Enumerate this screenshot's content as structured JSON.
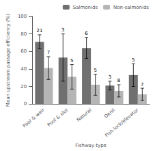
{
  "chart_data": {
    "type": "bar",
    "categories": [
      "Pool & weir",
      "Pool & slot",
      "Natural",
      "Denil",
      "Fish lock/elevator"
    ],
    "series": [
      {
        "name": "Salmonids",
        "color": "#707070",
        "values": [
          71,
          53,
          64,
          21,
          33
        ],
        "errors": [
          8,
          27,
          12,
          5,
          13
        ],
        "n": [
          21,
          3,
          6,
          3,
          5
        ]
      },
      {
        "name": "Non-salmonids",
        "color": "#b5b5b5",
        "values": [
          41,
          31,
          22,
          15,
          11
        ],
        "errors": [
          13,
          14,
          12,
          7,
          7
        ],
        "n": [
          7,
          5,
          5,
          8,
          7
        ]
      }
    ],
    "xlabel": "Fishway type",
    "ylabel": "Mean upstream passage efficiency (%)",
    "ylim": [
      0,
      100
    ],
    "yticks": [
      0,
      20,
      40,
      60,
      80,
      100
    ],
    "grid": false,
    "legend": "upper right"
  }
}
